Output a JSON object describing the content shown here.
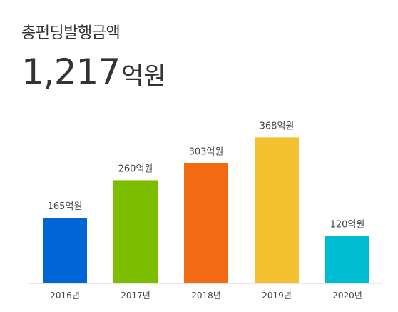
{
  "header": {
    "title": "총펀딩발행금액",
    "total_number": "1,217",
    "total_unit": "억원"
  },
  "chart_data": {
    "type": "bar",
    "categories": [
      "2016년",
      "2017년",
      "2018년",
      "2019년",
      "2020년"
    ],
    "values": [
      165,
      260,
      303,
      368,
      120
    ],
    "value_labels": [
      "165억원",
      "260억원",
      "303억원",
      "368억원",
      "120억원"
    ],
    "colors": [
      "#0066d6",
      "#7dbd00",
      "#f26a11",
      "#f5c22f",
      "#00bcd1"
    ],
    "title": "총펀딩발행금액",
    "ylim": [
      0,
      410
    ],
    "grid": false
  }
}
